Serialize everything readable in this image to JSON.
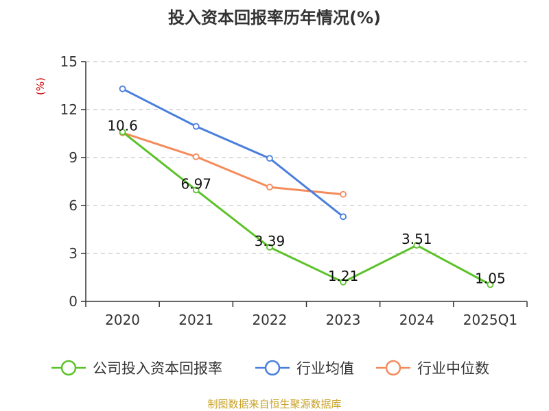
{
  "chart_data": {
    "type": "line",
    "title": "投入资本回报率历年情况(%)",
    "unit_label": "(%)",
    "categories": [
      "2020",
      "2021",
      "2022",
      "2023",
      "2024",
      "2025Q1"
    ],
    "ylim": [
      0,
      15
    ],
    "yticks": [
      0,
      3,
      6,
      9,
      12,
      15
    ],
    "grid": true,
    "legend_position": "bottom",
    "series": [
      {
        "name": "公司投入资本回报率",
        "color": "#5bc229",
        "values": [
          10.6,
          6.97,
          3.39,
          1.21,
          3.51,
          1.05
        ],
        "labels": [
          "10.6",
          "6.97",
          "3.39",
          "1.21",
          "3.51",
          "1.05"
        ]
      },
      {
        "name": "行业均值",
        "color": "#4a7fdc",
        "values": [
          13.3,
          10.95,
          8.95,
          5.3,
          null,
          null
        ]
      },
      {
        "name": "行业中位数",
        "color": "#f58b5b",
        "values": [
          10.55,
          9.05,
          7.15,
          6.7,
          null,
          null
        ]
      }
    ]
  },
  "footer": {
    "source": "制图数据来自恒生聚源数据库"
  }
}
